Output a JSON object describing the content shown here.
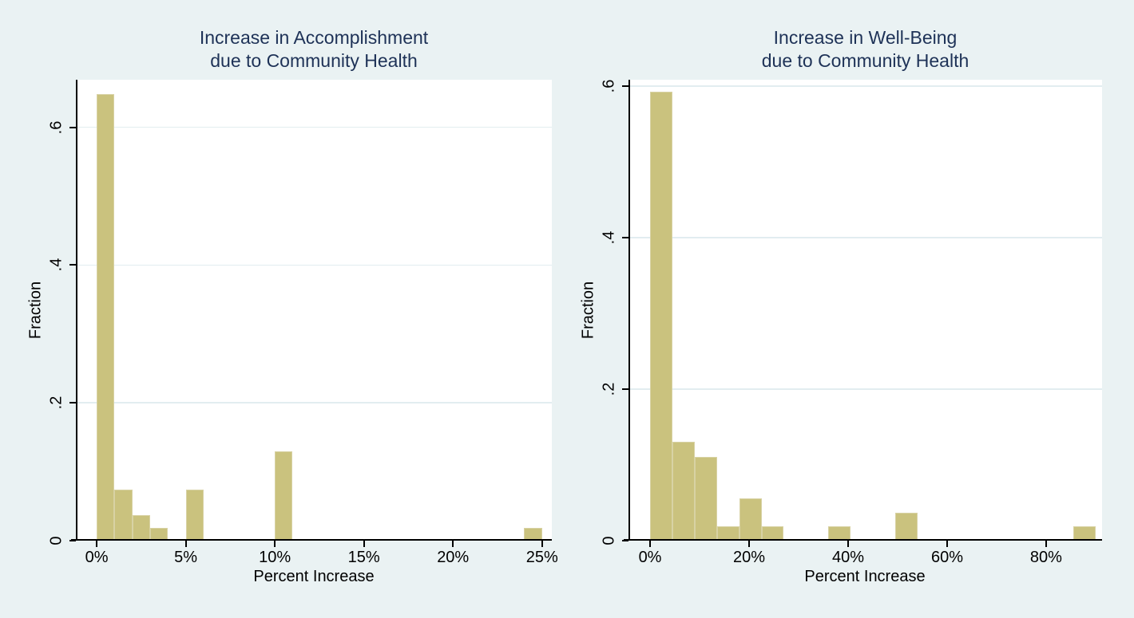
{
  "figure": {
    "background_color": "#eaf2f3",
    "plot_background_color": "#ffffff",
    "bar_color": "#cac27e",
    "bar_border_color": "#d8d2a4",
    "title_color": "#1e3257",
    "axis_color": "#000000",
    "gridline_color": "#e2edf0"
  },
  "chart_data": [
    {
      "type": "bar",
      "title": "Increase in Accomplishment due to Community Health",
      "title_lines": [
        "Increase in Accomplishment",
        "due to Community Health"
      ],
      "xlabel": "Percent Increase",
      "ylabel": "Fraction",
      "xlim": [
        -1.17,
        25.55
      ],
      "ylim": [
        0,
        0.669
      ],
      "grid": true,
      "bin_width_pct": 1,
      "x_ticks": [
        {
          "value": 0,
          "label": "0%"
        },
        {
          "value": 5,
          "label": "5%"
        },
        {
          "value": 10,
          "label": "10%"
        },
        {
          "value": 15,
          "label": "15%"
        },
        {
          "value": 20,
          "label": "20%"
        },
        {
          "value": 25,
          "label": "25%"
        }
      ],
      "y_ticks": [
        {
          "value": 0,
          "label": "0"
        },
        {
          "value": 0.2,
          "label": ".2"
        },
        {
          "value": 0.4,
          "label": ".4"
        },
        {
          "value": 0.6,
          "label": ".6"
        }
      ],
      "bars": [
        {
          "range": [
            0,
            1
          ],
          "fraction": 0.648
        },
        {
          "range": [
            1,
            2
          ],
          "fraction": 0.074
        },
        {
          "range": [
            2,
            3
          ],
          "fraction": 0.037
        },
        {
          "range": [
            3,
            4
          ],
          "fraction": 0.019
        },
        {
          "range": [
            5,
            6
          ],
          "fraction": 0.074
        },
        {
          "range": [
            10,
            11
          ],
          "fraction": 0.13
        },
        {
          "range": [
            24,
            25
          ],
          "fraction": 0.019
        }
      ]
    },
    {
      "type": "bar",
      "title": "Increase in Well-Being due to Community Health",
      "title_lines": [
        "Increase in Well-Being",
        "due to Community Health"
      ],
      "xlabel": "Percent Increase",
      "ylabel": "Fraction",
      "xlim": [
        -4.36,
        91.3
      ],
      "ylim": [
        0,
        0.6084
      ],
      "grid": true,
      "bin_width_pct": 4.5,
      "x_ticks": [
        {
          "value": 0,
          "label": "0%"
        },
        {
          "value": 20,
          "label": "20%"
        },
        {
          "value": 40,
          "label": "40%"
        },
        {
          "value": 60,
          "label": "60%"
        },
        {
          "value": 80,
          "label": "80%"
        }
      ],
      "y_ticks": [
        {
          "value": 0,
          "label": "0"
        },
        {
          "value": 0.2,
          "label": ".2"
        },
        {
          "value": 0.4,
          "label": ".4"
        },
        {
          "value": 0.6,
          "label": ".6"
        }
      ],
      "bars": [
        {
          "range": [
            0,
            4.5
          ],
          "fraction": 0.593
        },
        {
          "range": [
            4.5,
            9
          ],
          "fraction": 0.13
        },
        {
          "range": [
            9,
            13.5
          ],
          "fraction": 0.111
        },
        {
          "range": [
            13.5,
            18
          ],
          "fraction": 0.019
        },
        {
          "range": [
            18,
            22.5
          ],
          "fraction": 0.056
        },
        {
          "range": [
            22.5,
            27
          ],
          "fraction": 0.019
        },
        {
          "range": [
            36,
            40.5
          ],
          "fraction": 0.019
        },
        {
          "range": [
            49.5,
            54
          ],
          "fraction": 0.037
        },
        {
          "range": [
            85.5,
            90
          ],
          "fraction": 0.019
        }
      ]
    }
  ]
}
